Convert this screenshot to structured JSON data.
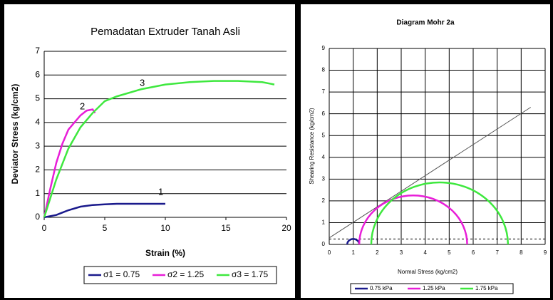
{
  "chart_data": [
    {
      "type": "line",
      "title": "Pemadatan Extruder Tanah Asli",
      "x_label": "Strain (%)",
      "y_label": "Deviator Stress (kg/cm2)",
      "xlim": [
        0,
        20
      ],
      "xticks": [
        0,
        5,
        10,
        15,
        20
      ],
      "ylim": [
        0,
        7
      ],
      "yticks": [
        0,
        1,
        2,
        3,
        4,
        5,
        6,
        7
      ],
      "grid": "y",
      "series": [
        {
          "name": "σ1 = 0.75",
          "color": "#1a1a8c",
          "x": [
            0,
            0.5,
            1,
            1.5,
            2,
            3,
            4,
            5,
            6,
            8,
            10
          ],
          "values": [
            0,
            0.05,
            0.1,
            0.2,
            0.3,
            0.45,
            0.52,
            0.55,
            0.57,
            0.57,
            0.57
          ]
        },
        {
          "name": "σ2 = 1.25",
          "color": "#e81ed8",
          "x": [
            0,
            0.5,
            1,
            1.5,
            2,
            2.5,
            3,
            3.5,
            4,
            4.2
          ],
          "values": [
            0,
            1.2,
            2.3,
            3.1,
            3.7,
            4.0,
            4.3,
            4.5,
            4.55,
            4.4
          ]
        },
        {
          "name": "σ3 = 1.75",
          "color": "#3ee83e",
          "x": [
            0,
            0.5,
            1,
            2,
            3,
            4,
            5,
            6,
            8,
            10,
            12,
            14,
            16,
            18,
            19
          ],
          "values": [
            0,
            0.8,
            1.6,
            2.9,
            3.8,
            4.4,
            4.9,
            5.1,
            5.4,
            5.6,
            5.7,
            5.75,
            5.75,
            5.7,
            5.6
          ]
        }
      ],
      "annotations": [
        "1",
        "2",
        "3"
      ],
      "legend": "bottom"
    },
    {
      "type": "mohr",
      "title": "Diagram Mohr 2a",
      "x_label": "Normal Stress (kg/cm2)",
      "y_label": "Shearing Resistance (kg/cm2)",
      "xlim": [
        0,
        9
      ],
      "xticks": [
        0,
        1,
        2,
        3,
        4,
        5,
        6,
        7,
        8,
        9
      ],
      "ylim": [
        0,
        9
      ],
      "yticks": [
        0,
        1,
        2,
        3,
        4,
        5,
        6,
        7,
        8,
        9
      ],
      "grid": "both",
      "series": [
        {
          "name": "0.75 kPa",
          "color": "#1a1a8c",
          "values": [
            0.75,
            1.25
          ]
        },
        {
          "name": "1.25 kPa",
          "color": "#e81ed8",
          "values": [
            1.25,
            5.75
          ]
        },
        {
          "name": "1.75 kPa",
          "color": "#3ee83e",
          "values": [
            1.75,
            7.45
          ]
        }
      ],
      "envelope": {
        "color": "#555555",
        "x": [
          0,
          8.4
        ],
        "y": [
          0.3,
          6.3
        ]
      },
      "reference_line": 0.25,
      "legend": "bottom"
    }
  ]
}
